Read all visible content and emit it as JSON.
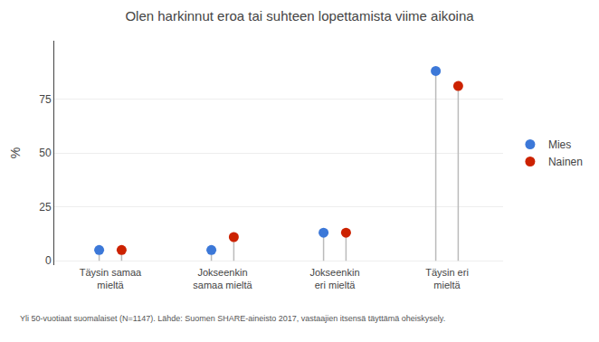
{
  "chart_data": {
    "type": "lollipop",
    "title": "Olen harkinnut eroa tai suhteen lopettamista viime aikoina",
    "categories": [
      "Täysin samaa\nmieltä",
      "Jokseenkin\nsamaa mieltä",
      "Jokseenkin\neri mieltä",
      "Täysin eri\nmieltä"
    ],
    "series": [
      {
        "name": "Mies",
        "color": "#3c78d8",
        "values": [
          5,
          5,
          13,
          88
        ]
      },
      {
        "name": "Nainen",
        "color": "#cc2200",
        "values": [
          5,
          11,
          13,
          81
        ]
      }
    ],
    "ylabel": "%",
    "ylim": [
      -2,
      102
    ],
    "yticks": [
      0,
      25,
      50,
      75
    ],
    "grid": true,
    "legend": "right",
    "marker": "circle",
    "annotations": [
      "Yli 50-vuotiaat suomalaiset (N=1147). Lähde: Suomen SHARE-aineisto 2017, vastaajien itsensä täyttämä oheiskysely."
    ]
  }
}
